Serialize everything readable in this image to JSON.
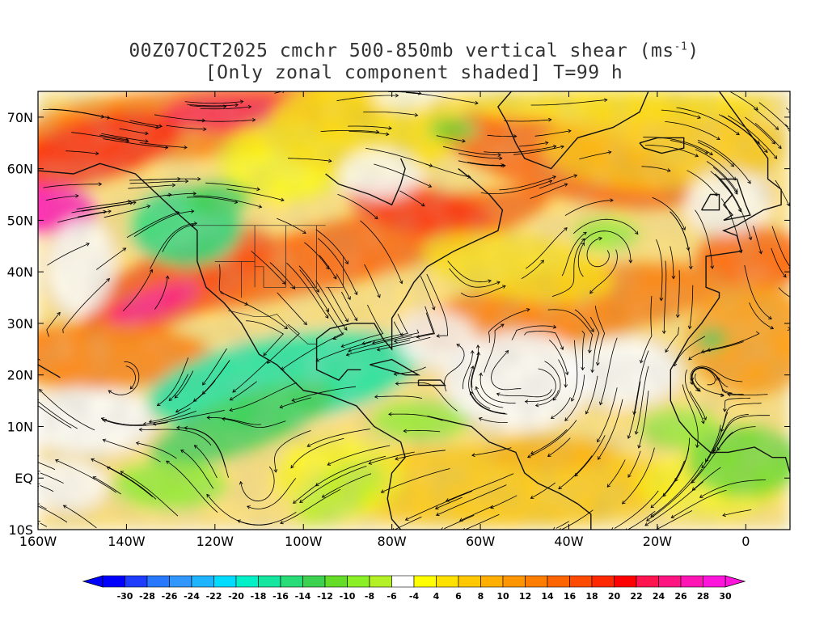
{
  "title": {
    "line1_prefix": "00Z07OCT2025 cmchr 500-850mb vertical shear (ms",
    "line1_sup": "-1",
    "line1_suffix": ")",
    "line2": "[Only zonal component shaded] T=99 h"
  },
  "map": {
    "lat_labels": [
      "70N",
      "60N",
      "50N",
      "40N",
      "30N",
      "20N",
      "10N",
      "EQ",
      "10S"
    ],
    "lat_values": [
      70,
      60,
      50,
      40,
      30,
      20,
      10,
      0,
      -10
    ],
    "lon_labels": [
      "160W",
      "140W",
      "120W",
      "100W",
      "80W",
      "60W",
      "40W",
      "20W",
      "0"
    ],
    "lon_values": [
      -160,
      -140,
      -120,
      -100,
      -80,
      -60,
      -40,
      -20,
      0
    ],
    "extent": {
      "lon_min": -160,
      "lon_max": 10,
      "lat_min": -10,
      "lat_max": 75
    }
  },
  "colorbar": {
    "ticks": [
      "-30",
      "-28",
      "-26",
      "-24",
      "-22",
      "-20",
      "-18",
      "-16",
      "-14",
      "-12",
      "-10",
      "-8",
      "-6",
      "-4",
      "4",
      "6",
      "8",
      "10",
      "12",
      "14",
      "16",
      "18",
      "20",
      "22",
      "24",
      "26",
      "28",
      "30"
    ],
    "colors": [
      "#0000ff",
      "#1e3cff",
      "#2878ff",
      "#3296ff",
      "#1eb4ff",
      "#00dcff",
      "#00f0c8",
      "#14e6a0",
      "#28dc78",
      "#3cd250",
      "#64dc28",
      "#8cf028",
      "#b4f028",
      "#ffffff",
      "#ffff00",
      "#ffe100",
      "#ffc800",
      "#ffaf00",
      "#ff9600",
      "#ff7d00",
      "#ff6400",
      "#ff4b00",
      "#ff2800",
      "#ff0000",
      "#ff1450",
      "#ff1482",
      "#ff14b4",
      "#ff14dc"
    ]
  }
}
